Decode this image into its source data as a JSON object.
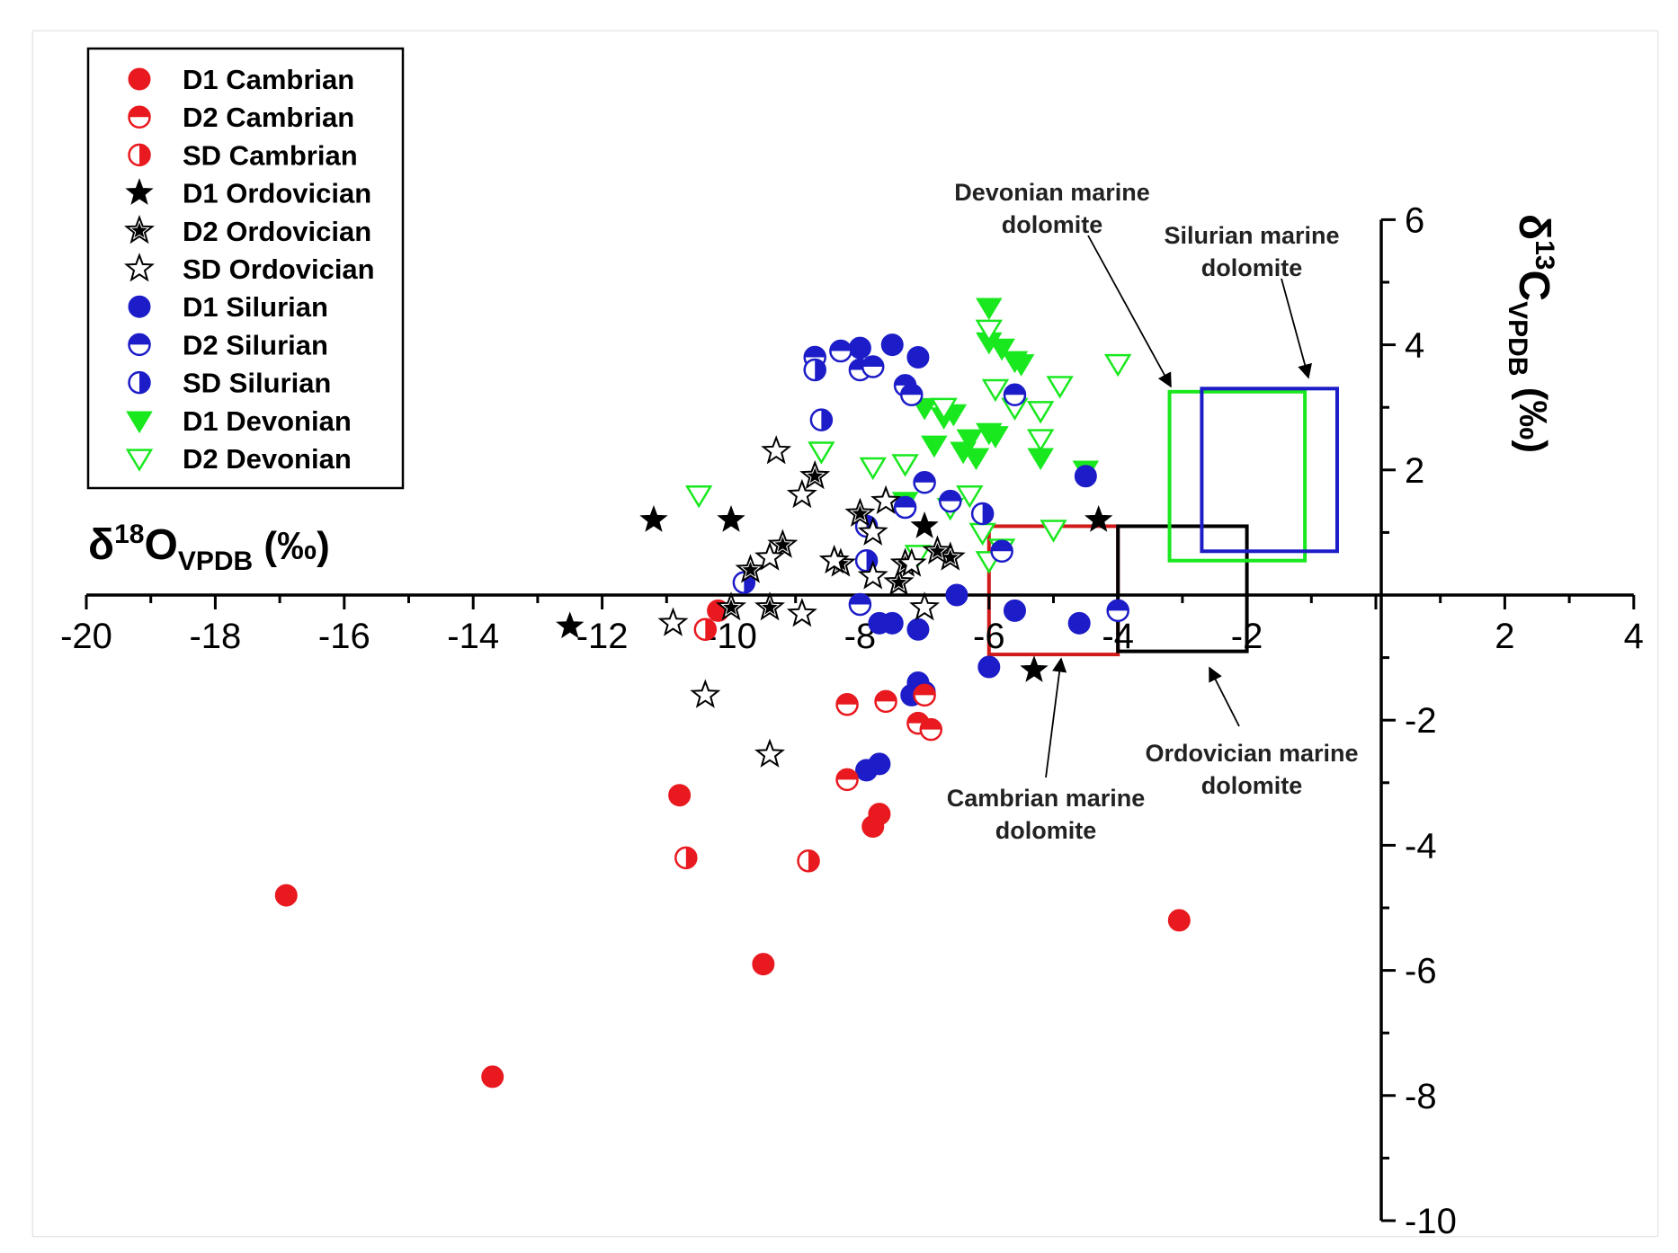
{
  "chart_data": {
    "type": "scatter",
    "title": "",
    "xlabel": {
      "delta": "δ",
      "sup": "18",
      "base": "O",
      "sub": "VPDB",
      "unit": " (‰)"
    },
    "ylabel": {
      "delta": "δ",
      "sup": "13",
      "base": "C",
      "sub": "VPDB",
      "unit": " (‰)"
    },
    "xlim": [
      -20,
      4
    ],
    "ylim": [
      -10,
      6
    ],
    "xticks": [
      -20,
      -18,
      -16,
      -14,
      -12,
      -10,
      -8,
      -6,
      -4,
      -2,
      2,
      4
    ],
    "yticks": [
      -10,
      -8,
      -6,
      -4,
      -2,
      2,
      4,
      6
    ],
    "legend_position": "top-left",
    "series": [
      {
        "name": "D1 Cambrian",
        "marker": "circle",
        "fill": "full",
        "color": "#e8191f",
        "points": [
          [
            -16.9,
            -4.8
          ],
          [
            -13.7,
            -7.7
          ],
          [
            -10.8,
            -3.2
          ],
          [
            -9.5,
            -5.9
          ],
          [
            -7.7,
            -3.5
          ],
          [
            -7.8,
            -3.7
          ],
          [
            -3.05,
            -5.2
          ],
          [
            -10.2,
            -0.25
          ]
        ]
      },
      {
        "name": "D2 Cambrian",
        "marker": "circle",
        "fill": "top-half",
        "color": "#e8191f",
        "points": [
          [
            -8.2,
            -1.75
          ],
          [
            -7.6,
            -1.7
          ],
          [
            -7.1,
            -2.05
          ],
          [
            -6.9,
            -2.15
          ],
          [
            -8.2,
            -2.95
          ],
          [
            -7.0,
            -1.6
          ]
        ]
      },
      {
        "name": "SD Cambrian",
        "marker": "circle",
        "fill": "half-right",
        "color": "#e8191f",
        "points": [
          [
            -10.7,
            -4.2
          ],
          [
            -8.8,
            -4.25
          ],
          [
            -10.4,
            -0.55
          ]
        ]
      },
      {
        "name": "D1 Ordovician",
        "marker": "star",
        "fill": "full",
        "color": "#000000",
        "points": [
          [
            -12.5,
            -0.5
          ],
          [
            -11.2,
            1.2
          ],
          [
            -10.0,
            1.2
          ],
          [
            -5.3,
            -1.2
          ],
          [
            -4.3,
            1.2
          ],
          [
            -7.0,
            1.1
          ]
        ]
      },
      {
        "name": "D2 Ordovician",
        "marker": "star",
        "fill": "half",
        "color": "#000000",
        "points": [
          [
            -9.7,
            0.4
          ],
          [
            -9.2,
            0.8
          ],
          [
            -8.0,
            1.3
          ],
          [
            -7.4,
            0.2
          ],
          [
            -6.6,
            0.6
          ],
          [
            -8.7,
            1.9
          ],
          [
            -9.4,
            -0.2
          ],
          [
            -10.0,
            -0.2
          ],
          [
            -8.3,
            0.5
          ],
          [
            -6.8,
            0.7
          ],
          [
            -7.3,
            0.5
          ]
        ]
      },
      {
        "name": "SD Ordovician",
        "marker": "star",
        "fill": "open",
        "color": "#000000",
        "points": [
          [
            -10.9,
            -0.45
          ],
          [
            -10.4,
            -1.6
          ],
          [
            -9.4,
            -2.55
          ],
          [
            -9.3,
            2.3
          ],
          [
            -9.4,
            0.6
          ],
          [
            -8.9,
            1.6
          ],
          [
            -8.4,
            0.55
          ],
          [
            -7.8,
            0.3
          ],
          [
            -7.6,
            1.5
          ],
          [
            -7.2,
            0.5
          ],
          [
            -8.9,
            -0.3
          ],
          [
            -7.0,
            -0.2
          ],
          [
            -7.8,
            1.0
          ]
        ]
      },
      {
        "name": "D1 Silurian",
        "marker": "circle",
        "fill": "full",
        "color": "#1c1cc8",
        "points": [
          [
            -8.0,
            3.95
          ],
          [
            -7.5,
            4.0
          ],
          [
            -7.1,
            3.8
          ],
          [
            -7.5,
            -0.45
          ],
          [
            -7.7,
            -0.45
          ],
          [
            -7.1,
            -0.55
          ],
          [
            -7.1,
            -1.4
          ],
          [
            -7.0,
            -1.55
          ],
          [
            -7.2,
            -1.6
          ],
          [
            -6.0,
            -1.15
          ],
          [
            -5.6,
            -0.25
          ],
          [
            -4.6,
            -0.45
          ],
          [
            -7.9,
            -2.8
          ],
          [
            -7.7,
            -2.7
          ],
          [
            -4.5,
            1.9
          ],
          [
            -6.5,
            0.0
          ]
        ]
      },
      {
        "name": "D2 Silurian",
        "marker": "circle",
        "fill": "top-half",
        "color": "#1c1cc8",
        "points": [
          [
            -8.7,
            3.8
          ],
          [
            -8.3,
            3.9
          ],
          [
            -8.0,
            3.6
          ],
          [
            -7.8,
            3.65
          ],
          [
            -7.3,
            3.35
          ],
          [
            -7.2,
            3.2
          ],
          [
            -5.6,
            3.2
          ],
          [
            -7.0,
            1.8
          ],
          [
            -6.6,
            1.5
          ],
          [
            -7.3,
            1.4
          ],
          [
            -5.8,
            0.7
          ],
          [
            -8.0,
            -0.15
          ],
          [
            -4.0,
            -0.25
          ]
        ]
      },
      {
        "name": "SD Silurian",
        "marker": "circle",
        "fill": "half-right",
        "color": "#1c1cc8",
        "points": [
          [
            -8.7,
            3.6
          ],
          [
            -8.6,
            2.8
          ],
          [
            -7.9,
            1.1
          ],
          [
            -9.8,
            0.2
          ],
          [
            -6.1,
            1.3
          ],
          [
            -7.9,
            0.55
          ]
        ]
      },
      {
        "name": "D1 Devonian",
        "marker": "triangle-down",
        "fill": "full",
        "color": "#19e81f",
        "points": [
          [
            -7.0,
            3.0
          ],
          [
            -6.7,
            2.85
          ],
          [
            -6.55,
            2.9
          ],
          [
            -6.3,
            2.5
          ],
          [
            -6.0,
            2.6
          ],
          [
            -6.85,
            2.4
          ],
          [
            -6.4,
            2.3
          ],
          [
            -6.2,
            2.2
          ],
          [
            -5.9,
            2.55
          ],
          [
            -5.2,
            2.2
          ],
          [
            -4.5,
            2.0
          ],
          [
            -6.0,
            4.05
          ],
          [
            -5.8,
            3.95
          ],
          [
            -5.6,
            3.75
          ],
          [
            -5.5,
            3.7
          ],
          [
            -7.3,
            1.5
          ],
          [
            -6.0,
            4.6
          ]
        ]
      },
      {
        "name": "D2 Devonian",
        "marker": "triangle-down",
        "fill": "open",
        "color": "#19e81f",
        "points": [
          [
            -10.5,
            1.6
          ],
          [
            -8.6,
            2.3
          ],
          [
            -7.8,
            2.05
          ],
          [
            -7.3,
            2.1
          ],
          [
            -6.6,
            1.4
          ],
          [
            -6.1,
            1.0
          ],
          [
            -5.8,
            0.75
          ],
          [
            -7.1,
            0.65
          ],
          [
            -6.0,
            0.55
          ],
          [
            -6.7,
            3.0
          ],
          [
            -5.9,
            3.3
          ],
          [
            -5.6,
            3.0
          ],
          [
            -5.2,
            2.95
          ],
          [
            -4.9,
            3.35
          ],
          [
            -5.2,
            2.5
          ],
          [
            -5.0,
            1.05
          ],
          [
            -4.0,
            3.7
          ],
          [
            -6.0,
            4.25
          ],
          [
            -6.3,
            1.6
          ]
        ]
      }
    ],
    "regions": [
      {
        "name": "Cambrian marine dolomite",
        "color": "#d11a1a",
        "x": [
          -6.0,
          -4.0
        ],
        "y": [
          -0.95,
          1.1
        ]
      },
      {
        "name": "Ordovician marine dolomite",
        "color": "#000000",
        "x": [
          -4.0,
          -2.0
        ],
        "y": [
          -0.9,
          1.1
        ]
      },
      {
        "name": "Devonian marine dolomite",
        "color": "#19e81f",
        "x": [
          -3.2,
          -1.1
        ],
        "y": [
          0.55,
          3.25
        ]
      },
      {
        "name": "Silurian marine dolomite",
        "color": "#1c1cc8",
        "x": [
          -2.7,
          -0.6
        ],
        "y": [
          0.7,
          3.3
        ]
      }
    ],
    "annotations": [
      {
        "id": "devonian",
        "lines": [
          "Devonian marine",
          "dolomite"
        ]
      },
      {
        "id": "silurian",
        "lines": [
          "Silurian marine",
          "dolomite"
        ]
      },
      {
        "id": "cambrian",
        "lines": [
          "Cambrian marine",
          "dolomite"
        ]
      },
      {
        "id": "ordovician",
        "lines": [
          "Ordovician marine",
          "dolomite"
        ]
      }
    ]
  }
}
